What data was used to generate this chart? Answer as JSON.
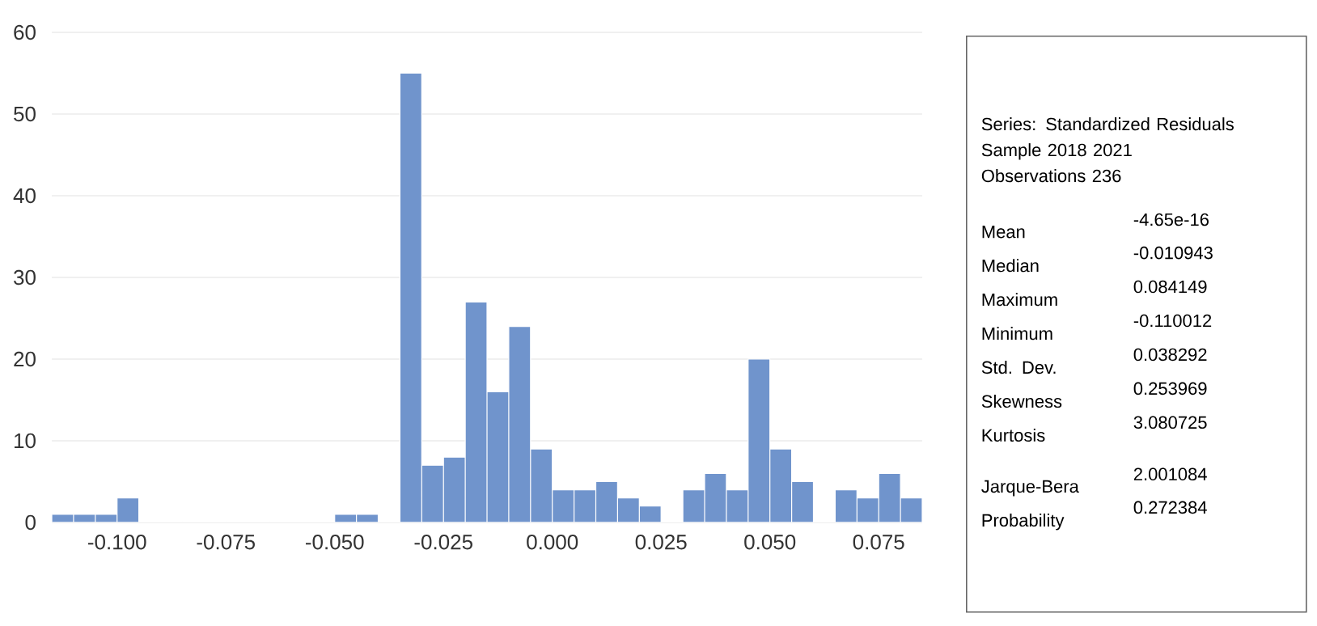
{
  "chart_data": {
    "type": "histogram",
    "color": "#7094cc",
    "bins": [
      -0.115,
      -0.11,
      -0.105,
      -0.1,
      -0.095,
      -0.09,
      -0.085,
      -0.08,
      -0.075,
      -0.07,
      -0.065,
      -0.06,
      -0.055,
      -0.05,
      -0.045,
      -0.04,
      -0.035,
      -0.03,
      -0.025,
      -0.02,
      -0.015,
      -0.01,
      -0.005,
      0,
      0.005,
      0.01,
      0.015,
      0.02,
      0.025,
      0.03,
      0.035,
      0.04,
      0.045,
      0.05,
      0.055,
      0.06,
      0.065,
      0.07,
      0.075,
      0.08,
      0.085
    ],
    "values": [
      1,
      1,
      1,
      3,
      0,
      0,
      0,
      0,
      0,
      0,
      0,
      0,
      0,
      1,
      1,
      0,
      55,
      7,
      8,
      27,
      16,
      24,
      9,
      4,
      4,
      5,
      3,
      2,
      0,
      4,
      6,
      4,
      20,
      9,
      5,
      0,
      4,
      3,
      6,
      3
    ],
    "xlim": [
      -0.115,
      0.085
    ],
    "xticks": [
      {
        "value": -0.1,
        "label": "-0.100"
      },
      {
        "value": -0.075,
        "label": "-0.075"
      },
      {
        "value": -0.05,
        "label": "-0.050"
      },
      {
        "value": -0.025,
        "label": "-0.025"
      },
      {
        "value": 0,
        "label": "0.000"
      },
      {
        "value": 0.025,
        "label": "0.025"
      },
      {
        "value": 0.05,
        "label": "0.050"
      },
      {
        "value": 0.075,
        "label": "0.075"
      }
    ],
    "ylim": [
      0,
      60
    ],
    "yticks": [
      0,
      10,
      20,
      30,
      40,
      50,
      60
    ],
    "grid": "y",
    "annotations": [
      "Series: Standardized Residuals",
      "Sample 2018 2021",
      "Observations 236",
      "Mean",
      "-4.65e-16",
      "Median",
      "-0.010943",
      "Maximum",
      "0.084149",
      "Minimum",
      "-0.110012",
      "Std. Dev.",
      "0.038292",
      "Skewness",
      "0.253969",
      "Kurtosis",
      "3.080725",
      "Jarque-Bera",
      "2.001084",
      "Probability",
      "0.272384"
    ]
  }
}
